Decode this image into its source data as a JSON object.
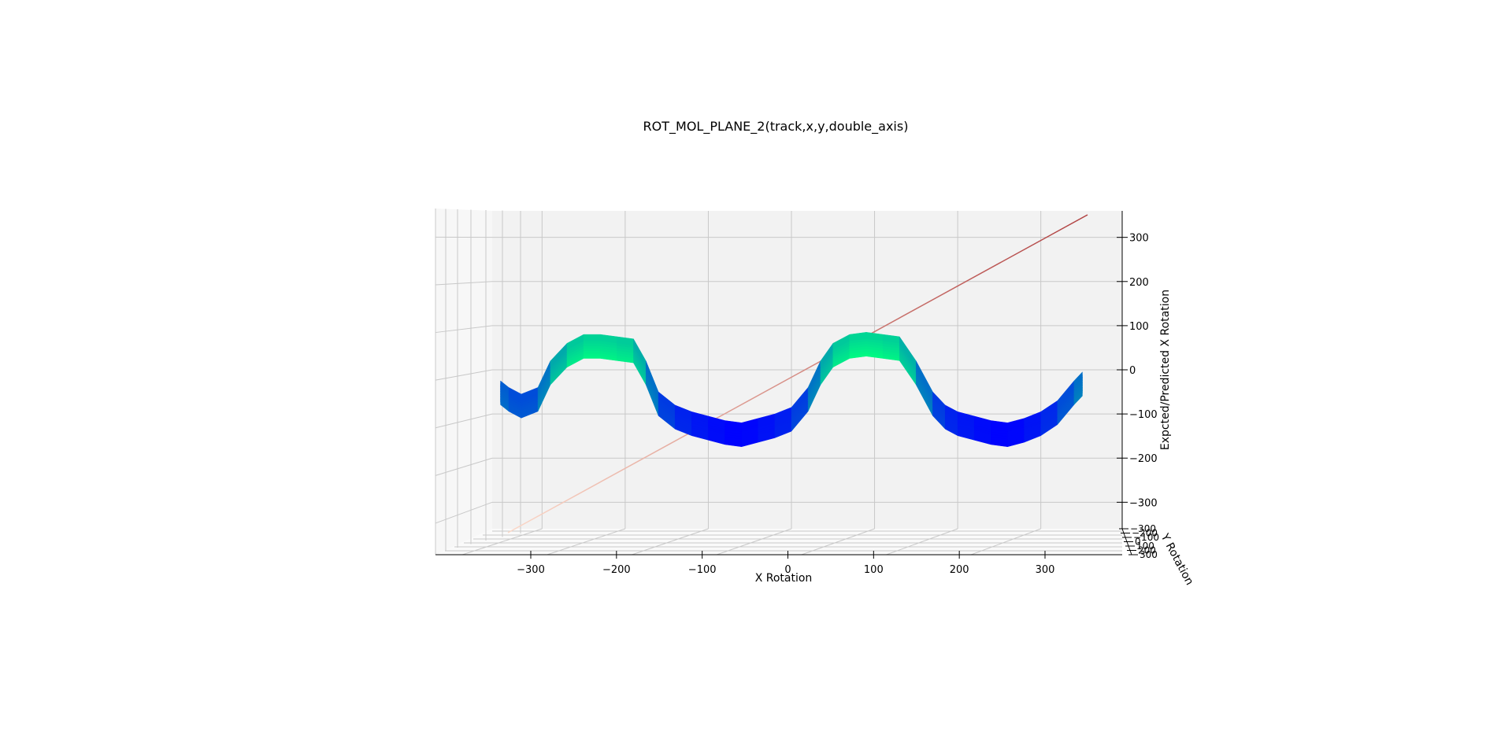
{
  "chart_data": {
    "type": "surface3d",
    "title": "ROT_MOL_PLANE_2(track,x,y,double_axis)",
    "xlabel": "X Rotation",
    "ylabel": "Y Rotation",
    "zlabel": "Expcted/Predicted X Rotation",
    "xlim": [
      -360,
      360
    ],
    "ylim": [
      -360,
      360
    ],
    "zlim": [
      -360,
      360
    ],
    "x_ticks": [
      "−300",
      "−200",
      "−100",
      "0",
      "100",
      "200",
      "300"
    ],
    "x_tick_values": [
      -300,
      -200,
      -100,
      0,
      100,
      200,
      300
    ],
    "y_ticks": [
      "−300",
      "−200",
      "−100",
      "0",
      "100",
      "200",
      "300"
    ],
    "y_tick_values": [
      -300,
      -200,
      -100,
      0,
      100,
      200,
      300
    ],
    "z_ticks": [
      "300",
      "200",
      "100",
      "0",
      "−100",
      "−200",
      "−300"
    ],
    "z_tick_values": [
      300,
      200,
      100,
      0,
      -100,
      -200,
      -300
    ],
    "grid": true,
    "colormap": "winter",
    "colormap_low": "#0000ff",
    "colormap_high": "#00ff80",
    "identity_line": {
      "x": [
        -360,
        360
      ],
      "z": [
        -360,
        360
      ],
      "color_start": "#fbd8c8",
      "color_end": "#b04040"
    },
    "surface_profile": {
      "x": [
        -350,
        -340,
        -325,
        -305,
        -290,
        -270,
        -250,
        -230,
        -210,
        -190,
        -175,
        -160,
        -140,
        -120,
        -100,
        -80,
        -60,
        -40,
        -20,
        0,
        20,
        35,
        50,
        70,
        90,
        110,
        130,
        150,
        170,
        185,
        200,
        220,
        240,
        260,
        280,
        300,
        320,
        340,
        350
      ],
      "z": [
        -25,
        -40,
        -55,
        -40,
        20,
        60,
        80,
        80,
        75,
        70,
        20,
        -50,
        -80,
        -95,
        -105,
        -115,
        -120,
        -110,
        -100,
        -85,
        -40,
        20,
        60,
        80,
        85,
        80,
        75,
        20,
        -50,
        -80,
        -95,
        -105,
        -115,
        -120,
        -110,
        -95,
        -70,
        -25,
        -5
      ]
    }
  }
}
